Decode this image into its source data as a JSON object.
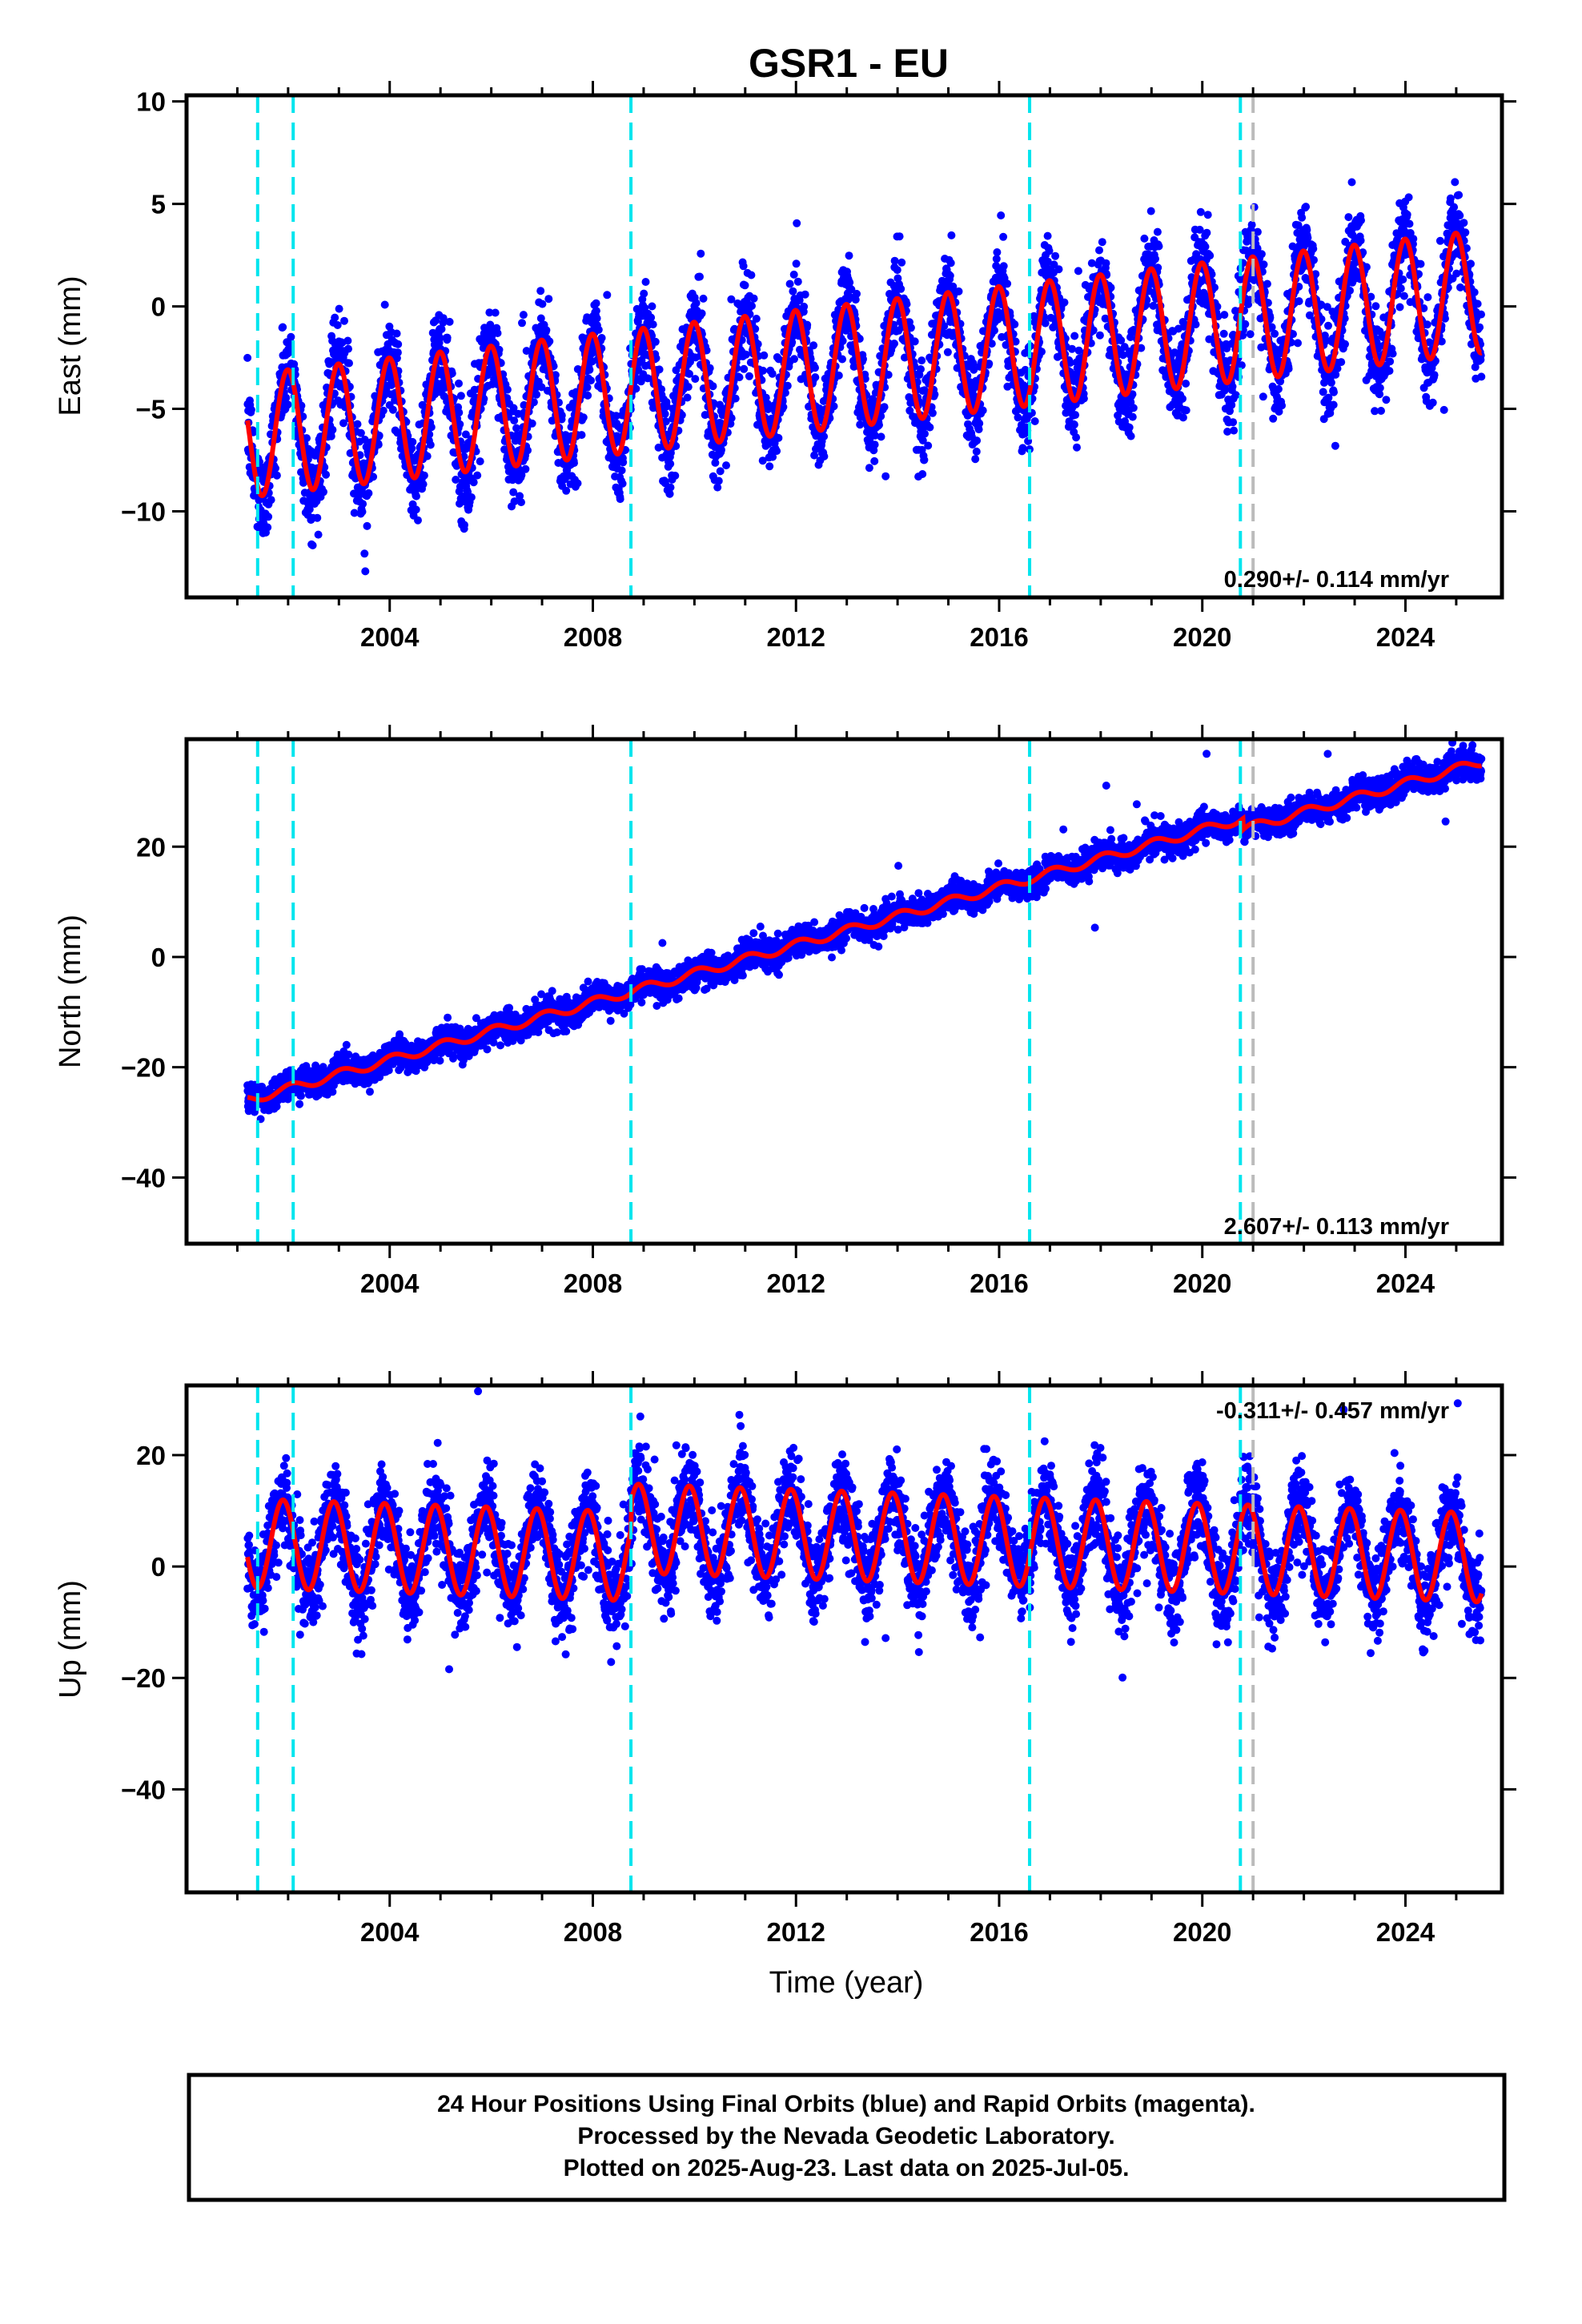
{
  "title": "GSR1 - EU",
  "colors": {
    "final_orbits": "#0000ff",
    "model_fit": "#ff0000",
    "equipment_change": "#00e5ee",
    "other_event": "#bbbbbb"
  },
  "chart_data": [
    {
      "type": "scatter",
      "ylabel": "East (mm)",
      "rate_label": "0.290+/- 0.114 mm/yr",
      "ylim": [
        -14.2,
        10.3
      ],
      "yticks": [
        -10,
        -5,
        0,
        5,
        10
      ],
      "ytick_labels": [
        "−10",
        "−5",
        "0",
        "5",
        "10"
      ],
      "xlim": [
        2000.0,
        2025.9
      ],
      "xticks": [
        2004,
        2008,
        2012,
        2016,
        2020,
        2024
      ],
      "xtick_labels": [
        "2004",
        "2008",
        "2012",
        "2016",
        "2020",
        "2024"
      ],
      "model": {
        "offset": -2.9,
        "rate": 0.29,
        "annual_amp": 3.0,
        "annual_phase": 1.63,
        "break": {
          "year": 2009.3,
          "step": 0
        }
      },
      "events": [
        2001.4,
        2002.1,
        2008.75,
        2016.6,
        2020.75
      ],
      "other_events": [
        2021.0
      ],
      "noise": 1.1
    },
    {
      "type": "scatter",
      "ylabel": "North (mm)",
      "rate_label": "2.607+/- 0.113 mm/yr",
      "ylim": [
        -52.0,
        39.5
      ],
      "yticks": [
        -40,
        -20,
        0,
        20
      ],
      "ytick_labels": [
        "−40",
        "−20",
        "0",
        "20"
      ],
      "xlim": [
        2000.0,
        2025.9
      ],
      "xticks": [
        2004,
        2008,
        2012,
        2016,
        2020,
        2024
      ],
      "xtick_labels": [
        "2004",
        "2008",
        "2012",
        "2016",
        "2020",
        "2024"
      ],
      "model": {
        "offset": 4.8,
        "rate": 2.607,
        "annual_amp": 0.8,
        "annual_phase": 1.2,
        "break": {
          "year": 2020.8,
          "step": -2.0
        }
      },
      "events": [
        2001.4,
        2002.1,
        2008.75,
        2016.6,
        2020.75
      ],
      "other_events": [
        2021.0
      ],
      "noise": 1.3
    },
    {
      "type": "scatter",
      "ylabel": "Up (mm)",
      "xlabel": "Time (year)",
      "rate_label": "-0.311+/- 0.457 mm/yr",
      "ylim": [
        -58.5,
        32.5
      ],
      "yticks": [
        -40,
        -20,
        0,
        20
      ],
      "ytick_labels": [
        "−40",
        "−20",
        "0",
        "20"
      ],
      "xlim": [
        2000.0,
        2025.9
      ],
      "xticks": [
        2004,
        2008,
        2012,
        2016,
        2020,
        2024
      ],
      "xtick_labels": [
        "2004",
        "2008",
        "2012",
        "2016",
        "2020",
        "2024"
      ],
      "model": {
        "offset": 0.5,
        "rate": -0.311,
        "annual_amp": 8.0,
        "annual_phase": 2.2,
        "break": {
          "year": 2008.75,
          "step": 5.0
        }
      },
      "events": [
        2001.4,
        2002.1,
        2008.75,
        2016.6,
        2020.75
      ],
      "other_events": [
        2021.0
      ],
      "noise": 4.0
    }
  ],
  "footer": {
    "line1": "24 Hour Positions Using Final Orbits (blue) and Rapid Orbits (magenta).",
    "line2": "Processed by the Nevada Geodetic Laboratory.",
    "line3": "Plotted on 2025-Aug-23. Last data on 2025-Jul-05."
  }
}
